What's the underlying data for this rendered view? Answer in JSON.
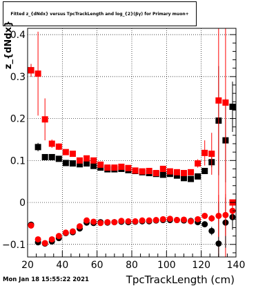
{
  "title": "Fitted z_{dNdx} versus TpcTrackLength and log_{2}(βγ) for Primary muon+",
  "timestamp": "Mon Jan 18 15:55:22 2021",
  "chart_data": {
    "type": "scatter",
    "title": "Fitted z_{dNdx} versus TpcTrackLength and log_{2}(βγ) for Primary muon+",
    "xlabel": "TpcTrackLength (cm)",
    "ylabel": "z_{dNdx}",
    "xlim": [
      20,
      140
    ],
    "ylim": [
      -0.13,
      0.415
    ],
    "xticks": [
      20,
      40,
      60,
      80,
      100,
      120,
      140
    ],
    "yticks": [
      -0.1,
      0,
      0.1,
      0.2,
      0.3,
      0.4
    ],
    "ytick_labels": [
      "−0.1",
      "0",
      "0.1",
      "0.2",
      "0.3",
      "0.4"
    ],
    "grid": true,
    "series": [
      {
        "marker": "square",
        "color": "#000000",
        "x": [
          22,
          26,
          30,
          34,
          38,
          42,
          46,
          50,
          54,
          58,
          62,
          66,
          70,
          74,
          78,
          82,
          86,
          90,
          94,
          98,
          102,
          106,
          110,
          114,
          118,
          122,
          126,
          130,
          134,
          138
        ],
        "y": [
          0.315,
          0.132,
          0.108,
          0.108,
          0.104,
          0.094,
          0.093,
          0.091,
          0.093,
          0.087,
          0.083,
          0.079,
          0.079,
          0.08,
          0.077,
          0.075,
          0.072,
          0.07,
          0.068,
          0.066,
          0.068,
          0.064,
          0.058,
          0.056,
          0.062,
          0.075,
          0.096,
          0.195,
          0.148,
          0.228
        ],
        "err": [
          0.015,
          0.01,
          0.006,
          0.005,
          0.004,
          0.003,
          0.003,
          0.003,
          0.003,
          0.003,
          0.003,
          0.003,
          0.003,
          0.003,
          0.003,
          0.003,
          0.003,
          0.003,
          0.003,
          0.003,
          0.003,
          0.003,
          0.003,
          0.004,
          0.005,
          0.007,
          0.012,
          0.13,
          0.1,
          0.06
        ]
      },
      {
        "marker": "square",
        "color": "#ff0000",
        "x": [
          22,
          26,
          30,
          34,
          38,
          42,
          46,
          50,
          54,
          58,
          62,
          66,
          70,
          74,
          78,
          82,
          86,
          90,
          94,
          98,
          102,
          106,
          110,
          114,
          118,
          122,
          126,
          130,
          134,
          138
        ],
        "y": [
          0.315,
          0.307,
          0.198,
          0.14,
          0.133,
          0.12,
          0.116,
          0.1,
          0.105,
          0.1,
          0.09,
          0.083,
          0.083,
          0.085,
          0.082,
          0.076,
          0.074,
          0.075,
          0.07,
          0.08,
          0.074,
          0.072,
          0.07,
          0.072,
          0.093,
          0.118,
          0.116,
          0.243,
          0.238,
          0.0
        ],
        "err": [
          0.015,
          0.1,
          0.05,
          0.01,
          0.008,
          0.006,
          0.005,
          0.004,
          0.004,
          0.004,
          0.003,
          0.003,
          0.003,
          0.003,
          0.003,
          0.003,
          0.003,
          0.003,
          0.003,
          0.003,
          0.003,
          0.003,
          0.004,
          0.005,
          0.01,
          0.03,
          0.05,
          0.4,
          0.4,
          0.0
        ]
      },
      {
        "marker": "circle",
        "color": "#000000",
        "x": [
          22,
          26,
          30,
          34,
          38,
          42,
          46,
          50,
          54,
          58,
          62,
          66,
          70,
          74,
          78,
          82,
          86,
          90,
          94,
          98,
          102,
          106,
          110,
          114,
          118,
          122,
          126,
          130,
          134,
          138
        ],
        "y": [
          -0.053,
          -0.095,
          -0.098,
          -0.093,
          -0.085,
          -0.073,
          -0.071,
          -0.062,
          -0.048,
          -0.049,
          -0.047,
          -0.048,
          -0.047,
          -0.046,
          -0.047,
          -0.046,
          -0.045,
          -0.045,
          -0.043,
          -0.042,
          -0.042,
          -0.042,
          -0.043,
          -0.044,
          -0.047,
          -0.052,
          -0.068,
          -0.098,
          -0.048,
          -0.035
        ],
        "err": [
          0.005,
          0.004,
          0.004,
          0.003,
          0.003,
          0.003,
          0.003,
          0.003,
          0.002,
          0.002,
          0.002,
          0.002,
          0.002,
          0.002,
          0.002,
          0.002,
          0.002,
          0.002,
          0.002,
          0.002,
          0.002,
          0.002,
          0.002,
          0.002,
          0.003,
          0.004,
          0.01,
          0.1,
          0.06,
          0.03
        ]
      },
      {
        "marker": "circle",
        "color": "#ff0000",
        "x": [
          22,
          26,
          30,
          34,
          38,
          42,
          46,
          50,
          54,
          58,
          62,
          66,
          70,
          74,
          78,
          82,
          86,
          90,
          94,
          98,
          102,
          106,
          110,
          114,
          118,
          122,
          126,
          130,
          134,
          138
        ],
        "y": [
          -0.055,
          -0.088,
          -0.097,
          -0.088,
          -0.08,
          -0.072,
          -0.069,
          -0.057,
          -0.043,
          -0.046,
          -0.049,
          -0.047,
          -0.047,
          -0.044,
          -0.045,
          -0.045,
          -0.043,
          -0.043,
          -0.042,
          -0.04,
          -0.039,
          -0.042,
          -0.041,
          -0.045,
          -0.04,
          -0.032,
          -0.038,
          -0.032,
          -0.03,
          -0.02
        ],
        "err": [
          0.006,
          0.004,
          0.004,
          0.003,
          0.003,
          0.003,
          0.003,
          0.002,
          0.002,
          0.002,
          0.002,
          0.002,
          0.002,
          0.002,
          0.002,
          0.002,
          0.002,
          0.002,
          0.002,
          0.002,
          0.002,
          0.002,
          0.002,
          0.003,
          0.004,
          0.005,
          0.008,
          0.05,
          0.05,
          0.02
        ]
      }
    ]
  }
}
